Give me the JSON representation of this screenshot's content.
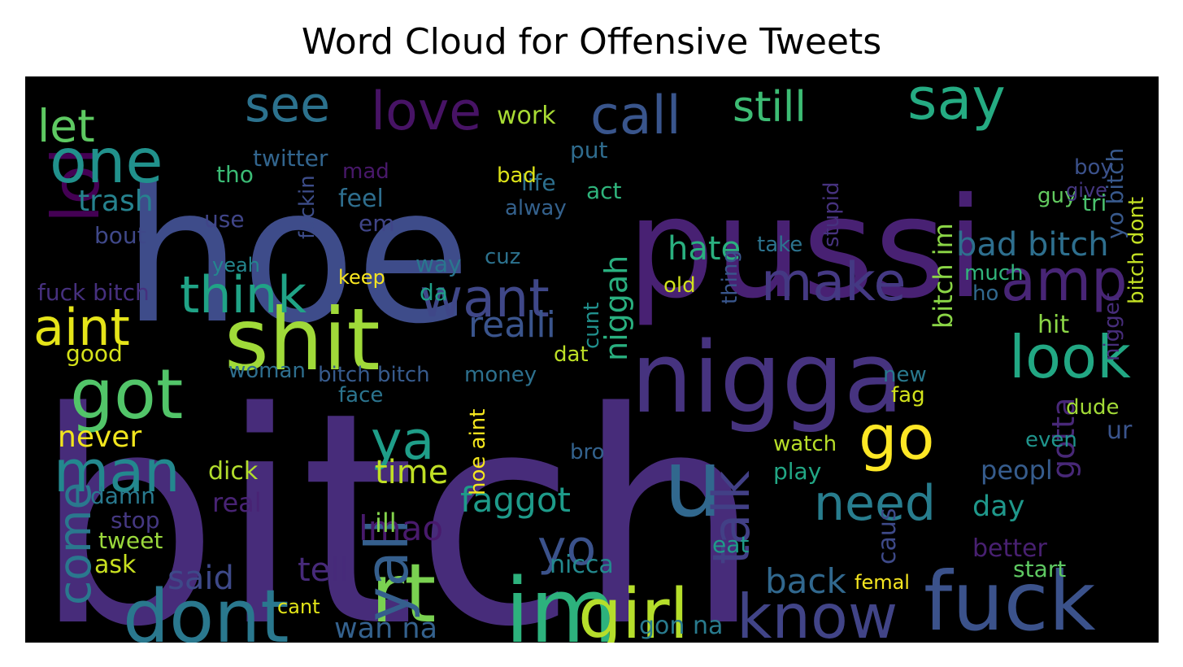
{
  "chart_data": {
    "type": "wordcloud",
    "title": "Word Cloud for Offensive Tweets",
    "background": "#000000",
    "palette": "viridis",
    "words": [
      {
        "text": "bitch",
        "c": "#472c7a"
      },
      {
        "text": "hoe",
        "c": "#3e4c8a"
      },
      {
        "text": "pussi",
        "c": "#482173"
      },
      {
        "text": "nigga",
        "c": "#46337f"
      },
      {
        "text": "fuck",
        "c": "#3b528b"
      },
      {
        "text": "shit",
        "c": "#a0da39"
      },
      {
        "text": "im",
        "c": "#2db27d"
      },
      {
        "text": "rt",
        "c": "#7ad151"
      },
      {
        "text": "dont",
        "c": "#2a788e"
      },
      {
        "text": "got",
        "c": "#52c569"
      },
      {
        "text": "lol",
        "c": "#440154"
      },
      {
        "text": "one",
        "c": "#21918c"
      },
      {
        "text": "u",
        "c": "#31688e"
      },
      {
        "text": "say",
        "c": "#25ab82"
      },
      {
        "text": "call",
        "c": "#39558c"
      },
      {
        "text": "love",
        "c": "#471365"
      },
      {
        "text": "see",
        "c": "#2c728e"
      },
      {
        "text": "girl",
        "c": "#b5de2b"
      },
      {
        "text": "know",
        "c": "#414487"
      },
      {
        "text": "man",
        "c": "#23888e"
      },
      {
        "text": "amp",
        "c": "#482576"
      },
      {
        "text": "look",
        "c": "#22a884"
      },
      {
        "text": "make",
        "c": "#443983"
      },
      {
        "text": "want",
        "c": "#3f4788"
      },
      {
        "text": "think",
        "c": "#20a386"
      },
      {
        "text": "ya",
        "c": "#1f9e89"
      },
      {
        "text": "yall",
        "c": "#355f8d"
      },
      {
        "text": "go",
        "c": "#fde725"
      },
      {
        "text": "talk",
        "c": "#424086"
      },
      {
        "text": "aint",
        "c": "#e5e419"
      },
      {
        "text": "need",
        "c": "#287d8e"
      },
      {
        "text": "still",
        "c": "#3dbc74"
      },
      {
        "text": "let",
        "c": "#5ec962"
      },
      {
        "text": "come",
        "c": "#2a788e"
      },
      {
        "text": "yo",
        "c": "#3b528b"
      },
      {
        "text": "faggot",
        "c": "#1e9b8a"
      },
      {
        "text": "trash",
        "c": "#26828e"
      },
      {
        "text": "realli",
        "c": "#3a548c"
      },
      {
        "text": "lmao",
        "c": "#481a6c"
      },
      {
        "text": "time",
        "c": "#c0df25"
      },
      {
        "text": "niggah",
        "c": "#29af7f"
      },
      {
        "text": "said",
        "c": "#3e4989"
      },
      {
        "text": "tell",
        "c": "#472a7a"
      },
      {
        "text": "back",
        "c": "#31688e"
      },
      {
        "text": "wan na",
        "c": "#34618d"
      },
      {
        "text": "gon na",
        "c": "#297b8e"
      },
      {
        "text": "bad bitch",
        "c": "#2e6f8e"
      },
      {
        "text": "bitch im",
        "c": "#8bd646"
      },
      {
        "text": "hate",
        "c": "#2ab07f"
      },
      {
        "text": "peopl",
        "c": "#365c8d"
      },
      {
        "text": "day",
        "c": "#1f988b"
      },
      {
        "text": "gotta",
        "c": "#482878"
      },
      {
        "text": "bitch dont",
        "c": "#c2df23"
      },
      {
        "text": "yo bitch",
        "c": "#38598c"
      },
      {
        "text": "fuck bitch",
        "c": "#46307e"
      },
      {
        "text": "twitter",
        "c": "#32658e"
      },
      {
        "text": "never",
        "c": "#f1e51d"
      },
      {
        "text": "good",
        "c": "#d5e21a"
      },
      {
        "text": "stop",
        "c": "#453882"
      },
      {
        "text": "tweet",
        "c": "#9bd93c"
      },
      {
        "text": "play",
        "c": "#22a785"
      },
      {
        "text": "watch",
        "c": "#b8de29"
      },
      {
        "text": "start",
        "c": "#5ec962"
      },
      {
        "text": "bitch bitch",
        "c": "#375b8d"
      },
      {
        "text": "money",
        "c": "#2d708e"
      },
      {
        "text": "nicca",
        "c": "#23898e"
      },
      {
        "text": "caus",
        "c": "#3e4a89"
      },
      {
        "text": "life",
        "c": "#2d708e"
      },
      {
        "text": "work",
        "c": "#a8db34"
      },
      {
        "text": "boy",
        "c": "#3b518b"
      },
      {
        "text": "guy",
        "c": "#62cb5f"
      },
      {
        "text": "give",
        "c": "#453781"
      },
      {
        "text": "tri",
        "c": "#4ac16d"
      },
      {
        "text": "put",
        "c": "#2f6c8e"
      },
      {
        "text": "feel",
        "c": "#2e6e8e"
      },
      {
        "text": "alway",
        "c": "#34618d"
      },
      {
        "text": "act",
        "c": "#2fb47c"
      },
      {
        "text": "keep",
        "c": "#f8e621"
      },
      {
        "text": "mad",
        "c": "#48186a"
      },
      {
        "text": "bad",
        "c": "#dde318"
      },
      {
        "text": "dat",
        "c": "#bddf26"
      },
      {
        "text": "da",
        "c": "#1fa088"
      },
      {
        "text": "way",
        "c": "#2a768e"
      },
      {
        "text": "take",
        "c": "#2c738e"
      },
      {
        "text": "stupid",
        "c": "#46327e"
      },
      {
        "text": "hit",
        "c": "#8bd646"
      },
      {
        "text": "dick",
        "c": "#b2dd2d"
      },
      {
        "text": "real",
        "c": "#482374"
      },
      {
        "text": "ill",
        "c": "#83d34b"
      },
      {
        "text": "ask",
        "c": "#c8e020"
      },
      {
        "text": "face",
        "c": "#2b748e"
      },
      {
        "text": "new",
        "c": "#29798e"
      },
      {
        "text": "fag",
        "c": "#d2e21b"
      },
      {
        "text": "better",
        "c": "#482071"
      },
      {
        "text": "femal",
        "c": "#f6e620"
      },
      {
        "text": "bro",
        "c": "#33628d"
      },
      {
        "text": "even",
        "c": "#1f948c"
      },
      {
        "text": "ur",
        "c": "#3a548c"
      },
      {
        "text": "much",
        "c": "#31b57b"
      },
      {
        "text": "old",
        "c": "#d0e11c"
      },
      {
        "text": "cant",
        "c": "#e2e418"
      },
      {
        "text": "damn",
        "c": "#29798e"
      },
      {
        "text": "cunt",
        "c": "#21908d"
      },
      {
        "text": "woman",
        "c": "#2e6e8e"
      },
      {
        "text": "em",
        "c": "#404588"
      },
      {
        "text": "use",
        "c": "#404588"
      },
      {
        "text": "yeah",
        "c": "#24868e"
      },
      {
        "text": "tho",
        "c": "#3bbb75"
      },
      {
        "text": "bout",
        "c": "#3f4889"
      },
      {
        "text": "cuz",
        "c": "#2c728e"
      },
      {
        "text": "nigger",
        "c": "#472d7b"
      },
      {
        "text": "dude",
        "c": "#a2da37"
      },
      {
        "text": "eat",
        "c": "#1e9c89"
      },
      {
        "text": "hoe aint",
        "c": "#f4e61e"
      },
      {
        "text": "ho",
        "c": "#31688e"
      },
      {
        "text": "fuckin",
        "c": "#3d4d8a"
      },
      {
        "text": "thing",
        "c": "#39568c"
      }
    ]
  }
}
